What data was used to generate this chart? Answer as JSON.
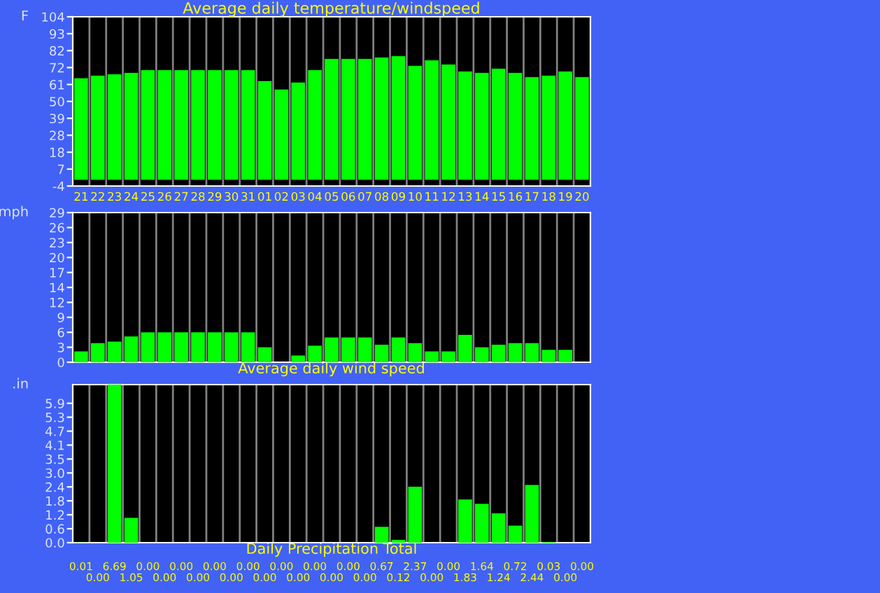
{
  "chart_data": [
    {
      "type": "bar",
      "title": "Average daily temperature/windspeed",
      "ylabel": "F",
      "categories": [
        "21",
        "22",
        "23",
        "24",
        "25",
        "26",
        "27",
        "28",
        "29",
        "30",
        "31",
        "01",
        "02",
        "03",
        "04",
        "05",
        "06",
        "07",
        "08",
        "09",
        "10",
        "11",
        "12",
        "13",
        "14",
        "15",
        "16",
        "17",
        "18",
        "19",
        "20"
      ],
      "series": [
        {
          "color": "#00ff00",
          "values": [
            64.7,
            66.4,
            67.3,
            68.2,
            70,
            70,
            70,
            70,
            70,
            70,
            70,
            62.9,
            57.6,
            62,
            70,
            77.1,
            77.1,
            77.1,
            78,
            78.9,
            72.6,
            76.2,
            73.5,
            69.1,
            68.2,
            70.9,
            68.2,
            65.5,
            66.4,
            69.1,
            65.5
          ]
        }
      ],
      "ylim": [
        -4,
        104
      ],
      "yticks": [
        -4,
        {
          "value": 6.8,
          "label": "7"
        },
        {
          "value": 17.6,
          "label": "18"
        },
        {
          "value": 28.4,
          "label": "28"
        },
        {
          "value": 39.2,
          "label": "39"
        },
        50,
        {
          "value": 60.8,
          "label": "61"
        },
        {
          "value": 71.6,
          "label": "72"
        },
        {
          "value": 82.4,
          "label": "82"
        },
        {
          "value": 93.2,
          "label": "93"
        },
        104
      ],
      "grid": "x"
    },
    {
      "type": "bar",
      "xlabel": "Average daily wind speed",
      "ylabel": "mph",
      "categories": [
        "21",
        "22",
        "23",
        "24",
        "25",
        "26",
        "27",
        "28",
        "29",
        "30",
        "31",
        "01",
        "02",
        "03",
        "04",
        "05",
        "06",
        "07",
        "08",
        "09",
        "10",
        "11",
        "12",
        "13",
        "14",
        "15",
        "16",
        "17",
        "18",
        "19",
        "20"
      ],
      "series": [
        {
          "color": "#00ff00",
          "values": [
            2.1,
            3.7,
            4.0,
            5.0,
            5.8,
            5.8,
            5.8,
            5.8,
            5.8,
            5.8,
            5.8,
            2.9,
            0,
            1.3,
            3.2,
            4.8,
            4.8,
            4.8,
            3.4,
            4.8,
            3.7,
            2.1,
            2.1,
            5.3,
            2.9,
            3.4,
            3.7,
            3.7,
            2.4,
            2.4,
            0
          ]
        }
      ],
      "ylim": [
        0,
        29
      ],
      "yticks": [
        0,
        {
          "value": 2.9,
          "label": "3"
        },
        {
          "value": 5.8,
          "label": "6"
        },
        {
          "value": 8.7,
          "label": "9"
        },
        {
          "value": 11.6,
          "label": "12"
        },
        {
          "value": 14.5,
          "label": "14"
        },
        {
          "value": 17.4,
          "label": "17"
        },
        {
          "value": 20.3,
          "label": "20"
        },
        {
          "value": 23.2,
          "label": "23"
        },
        {
          "value": 26.1,
          "label": "26"
        },
        29
      ],
      "grid": "x",
      "tick_labels": "y"
    },
    {
      "type": "bar",
      "xlabel": "Daily Precipitation Total",
      "ylabel": ".in",
      "categories": [
        "21",
        "22",
        "23",
        "24",
        "25",
        "26",
        "27",
        "28",
        "29",
        "30",
        "31",
        "01",
        "02",
        "03",
        "04",
        "05",
        "06",
        "07",
        "08",
        "09",
        "10",
        "11",
        "12",
        "13",
        "14",
        "15",
        "16",
        "17",
        "18",
        "19",
        "20"
      ],
      "series": [
        {
          "color": "#00ff00",
          "values": [
            0.01,
            0,
            6.69,
            1.05,
            0,
            0,
            0,
            0,
            0,
            0,
            0,
            0,
            0,
            0,
            0,
            0,
            0,
            0,
            0.67,
            0.12,
            2.37,
            0,
            0,
            1.83,
            1.64,
            1.24,
            0.72,
            2.44,
            0.03,
            0,
            0
          ],
          "value_labels": [
            "0.01",
            "0.00",
            "6.69",
            "1.05",
            "0.00",
            "0.00",
            "0.00",
            "0.00",
            "0.00",
            "0.00",
            "0.00",
            "0.00",
            "0.00",
            "0.00",
            "0.00",
            "0.00",
            "0.00",
            "0.00",
            "0.67",
            "0.12",
            "2.37",
            "0.00",
            "0.00",
            "1.83",
            "1.64",
            "1.24",
            "0.72",
            "2.44",
            "0.03",
            "0.00",
            "0.00"
          ]
        }
      ],
      "ylim": [
        0,
        6.69
      ],
      "yticks": [
        {
          "value": 0,
          "label": "0.0"
        },
        {
          "value": 0.59,
          "label": "0.6"
        },
        {
          "value": 1.18,
          "label": "1.2"
        },
        {
          "value": 1.77,
          "label": "1.8"
        },
        {
          "value": 2.36,
          "label": "2.4"
        },
        {
          "value": 2.95,
          "label": "3.0"
        },
        {
          "value": 3.54,
          "label": "3.5"
        },
        {
          "value": 4.13,
          "label": "4.1"
        },
        {
          "value": 4.72,
          "label": "4.7"
        },
        {
          "value": 5.31,
          "label": "5.3"
        },
        5.9
      ],
      "grid": "x",
      "tick_labels": "y"
    }
  ]
}
